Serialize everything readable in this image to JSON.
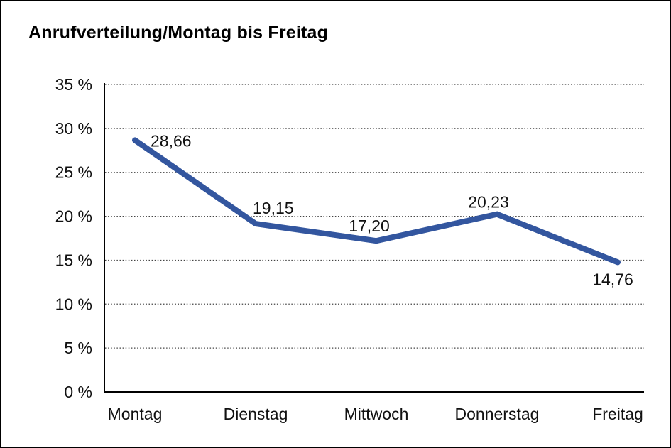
{
  "chart_data": {
    "type": "line",
    "title": "Anrufverteilung/Montag bis Freitag",
    "categories": [
      "Montag",
      "Dienstag",
      "Mittwoch",
      "Donnerstag",
      "Freitag"
    ],
    "values": [
      28.66,
      19.15,
      17.2,
      20.23,
      14.76
    ],
    "value_labels": [
      "28,66",
      "19,15",
      "17,20",
      "20,23",
      "14,76"
    ],
    "y_tick_labels": [
      "35 %",
      "30 %",
      "25 %",
      "20 %",
      "15 %",
      "10 %",
      "5 %",
      "0 %"
    ],
    "y_tick_values": [
      35,
      30,
      25,
      20,
      15,
      10,
      5,
      0
    ],
    "ylim": [
      0,
      35
    ],
    "xlabel": "",
    "ylabel": "",
    "grid": "horizontal-dotted",
    "legend": "none",
    "line_color": "#33569f",
    "axis_color": "#000000",
    "grid_color": "#444444"
  }
}
